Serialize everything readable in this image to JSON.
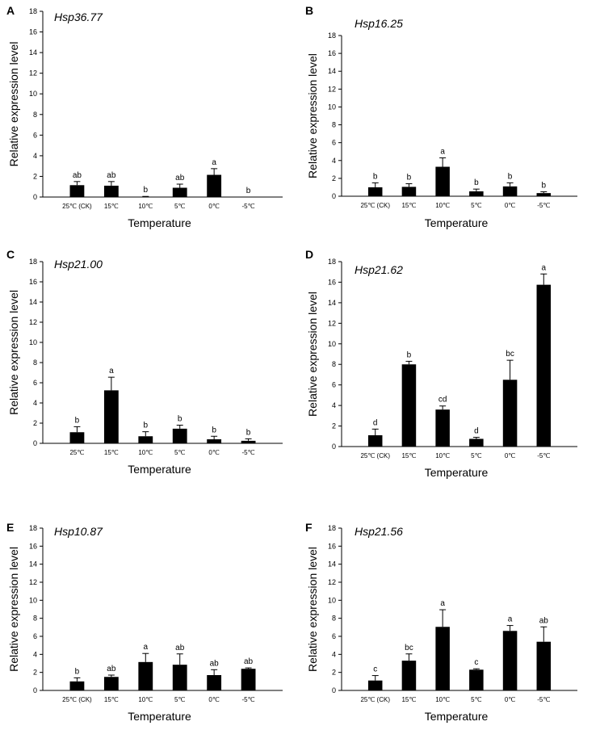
{
  "figure": {
    "y_axis_label": "Relative expression level",
    "x_axis_label": "Temperature"
  },
  "chart_data": [
    {
      "panel": "A",
      "type": "bar",
      "title": "Hsp36.77",
      "xlabel": "Temperature",
      "ylabel": "Relative expression level",
      "ylim": [
        0,
        18
      ],
      "yticks": [
        0,
        2,
        4,
        6,
        8,
        10,
        12,
        14,
        16,
        18
      ],
      "categories": [
        "25℃ (CK)",
        "15℃",
        "10℃",
        "5℃",
        "0℃",
        "-5℃"
      ],
      "values": [
        1.15,
        1.1,
        0.03,
        0.9,
        2.15,
        0.0
      ],
      "errors": [
        0.35,
        0.4,
        0.03,
        0.35,
        0.6,
        0.0
      ],
      "significance": [
        "ab",
        "ab",
        "b",
        "ab",
        "a",
        "b"
      ]
    },
    {
      "panel": "B",
      "type": "bar",
      "title": "Hsp16.25",
      "xlabel": "Temperature",
      "ylabel": "Relative expression level",
      "ylim": [
        0,
        18
      ],
      "yticks": [
        0,
        2,
        4,
        6,
        8,
        10,
        12,
        14,
        16,
        18
      ],
      "categories": [
        "25℃ (CK)",
        "15℃",
        "10℃",
        "5℃",
        "0℃",
        "-5℃"
      ],
      "values": [
        1.0,
        1.05,
        3.3,
        0.55,
        1.1,
        0.35
      ],
      "errors": [
        0.5,
        0.35,
        1.0,
        0.25,
        0.4,
        0.15
      ],
      "significance": [
        "b",
        "b",
        "a",
        "b",
        "b",
        "b"
      ]
    },
    {
      "panel": "C",
      "type": "bar",
      "title": "Hsp21.00",
      "xlabel": "Temperature",
      "ylabel": "Relative expression level",
      "ylim": [
        0,
        18
      ],
      "yticks": [
        0,
        2,
        4,
        6,
        8,
        10,
        12,
        14,
        16,
        18
      ],
      "categories": [
        "25℃",
        "15℃",
        "10℃",
        "5℃",
        "0℃",
        "-5℃"
      ],
      "values": [
        1.1,
        5.25,
        0.7,
        1.45,
        0.4,
        0.25
      ],
      "errors": [
        0.55,
        1.3,
        0.45,
        0.35,
        0.3,
        0.2
      ],
      "significance": [
        "b",
        "a",
        "b",
        "b",
        "b",
        "b"
      ]
    },
    {
      "panel": "D",
      "type": "bar",
      "title": "Hsp21.62",
      "xlabel": "Temperature",
      "ylabel": "Relative expression level",
      "ylim": [
        0,
        18
      ],
      "yticks": [
        0,
        2,
        4,
        6,
        8,
        10,
        12,
        14,
        16,
        18
      ],
      "categories": [
        "25℃ (CK)",
        "15℃",
        "10℃",
        "5℃",
        "0℃",
        "-5℃"
      ],
      "values": [
        1.1,
        8.0,
        3.6,
        0.75,
        6.5,
        15.75
      ],
      "errors": [
        0.6,
        0.3,
        0.35,
        0.15,
        1.9,
        1.05
      ],
      "significance": [
        "d",
        "b",
        "cd",
        "d",
        "bc",
        "a"
      ]
    },
    {
      "panel": "E",
      "type": "bar",
      "title": "Hsp10.87",
      "xlabel": "Temperature",
      "ylabel": "Relative expression level",
      "ylim": [
        0,
        18
      ],
      "yticks": [
        0,
        2,
        4,
        6,
        8,
        10,
        12,
        14,
        16,
        18
      ],
      "categories": [
        "25℃ (CK)",
        "15℃",
        "10℃",
        "5℃",
        "0℃",
        "-5℃"
      ],
      "values": [
        1.0,
        1.5,
        3.15,
        2.85,
        1.7,
        2.4
      ],
      "errors": [
        0.4,
        0.2,
        0.95,
        1.2,
        0.6,
        0.1
      ],
      "significance": [
        "b",
        "ab",
        "a",
        "ab",
        "ab",
        "ab"
      ]
    },
    {
      "panel": "F",
      "type": "bar",
      "title": "Hsp21.56",
      "xlabel": "Temperature",
      "ylabel": "Relative expression level",
      "ylim": [
        0,
        18
      ],
      "yticks": [
        0,
        2,
        4,
        6,
        8,
        10,
        12,
        14,
        16,
        18
      ],
      "categories": [
        "25℃ (CK)",
        "15℃",
        "10℃",
        "5℃",
        "0℃",
        "-5℃"
      ],
      "values": [
        1.1,
        3.3,
        7.05,
        2.3,
        6.6,
        5.4
      ],
      "errors": [
        0.55,
        0.75,
        1.9,
        0.1,
        0.6,
        1.65
      ],
      "significance": [
        "c",
        "bc",
        "a",
        "c",
        "a",
        "ab"
      ]
    }
  ]
}
